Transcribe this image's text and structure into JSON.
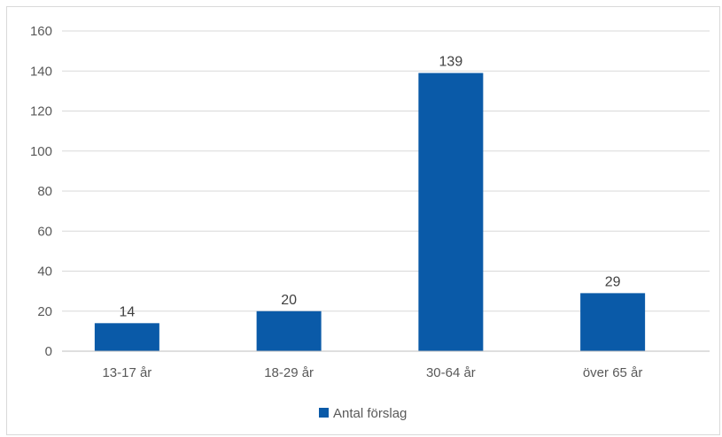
{
  "chart_data": {
    "type": "bar",
    "title": "",
    "xlabel": "",
    "ylabel": "",
    "categories": [
      "13-17 år",
      "18-29 år",
      "30-64 år",
      "över 65 år"
    ],
    "series": [
      {
        "name": "Antal förslag",
        "values": [
          14,
          20,
          139,
          29
        ],
        "color": "#0a5aa8"
      }
    ],
    "ylim": [
      0,
      160
    ],
    "yticks": [
      0,
      20,
      40,
      60,
      80,
      100,
      120,
      140,
      160
    ],
    "grid": true,
    "legend": "bottom",
    "data_labels": true
  }
}
